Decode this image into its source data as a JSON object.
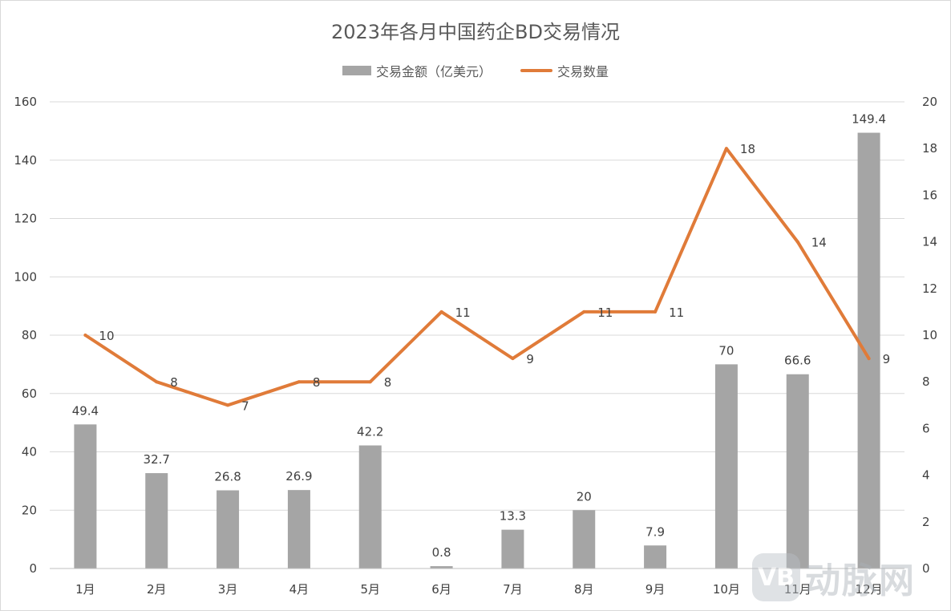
{
  "chart_data": {
    "type": "bar",
    "title": "2023年各月中国药企BD交易情况",
    "categories": [
      "1月",
      "2月",
      "3月",
      "4月",
      "5月",
      "6月",
      "7月",
      "8月",
      "9月",
      "10月",
      "11月",
      "12月"
    ],
    "series": [
      {
        "name": "交易金额（亿美元）",
        "type": "bar",
        "axis": "left",
        "color": "#a5a5a5",
        "values": [
          49.4,
          32.7,
          26.8,
          26.9,
          42.2,
          0.8,
          13.3,
          20,
          7.9,
          70,
          66.6,
          149.4
        ],
        "labels": [
          "49.4",
          "32.7",
          "26.8",
          "26.9",
          "42.2",
          "0.8",
          "13.3",
          "20",
          "7.9",
          "70",
          "66.6",
          "149.4"
        ]
      },
      {
        "name": "交易数量",
        "type": "line",
        "axis": "right",
        "color": "#e07b39",
        "values": [
          10,
          8,
          7,
          8,
          8,
          11,
          9,
          11,
          11,
          18,
          14,
          9
        ],
        "labels": [
          "10",
          "8",
          "7",
          "8",
          "8",
          "11",
          "9",
          "11",
          "11",
          "18",
          "14",
          "9"
        ]
      }
    ],
    "y_left": {
      "min": 0,
      "max": 160,
      "ticks": [
        "0",
        "20",
        "40",
        "60",
        "80",
        "100",
        "120",
        "140",
        "160"
      ]
    },
    "y_right": {
      "min": 0,
      "max": 20,
      "ticks": [
        "0",
        "2",
        "4",
        "6",
        "8",
        "10",
        "12",
        "14",
        "16",
        "18",
        "20"
      ]
    },
    "grid": true,
    "legend_position": "top"
  },
  "watermark": {
    "logo_text": "VB",
    "text": "动脉网"
  }
}
